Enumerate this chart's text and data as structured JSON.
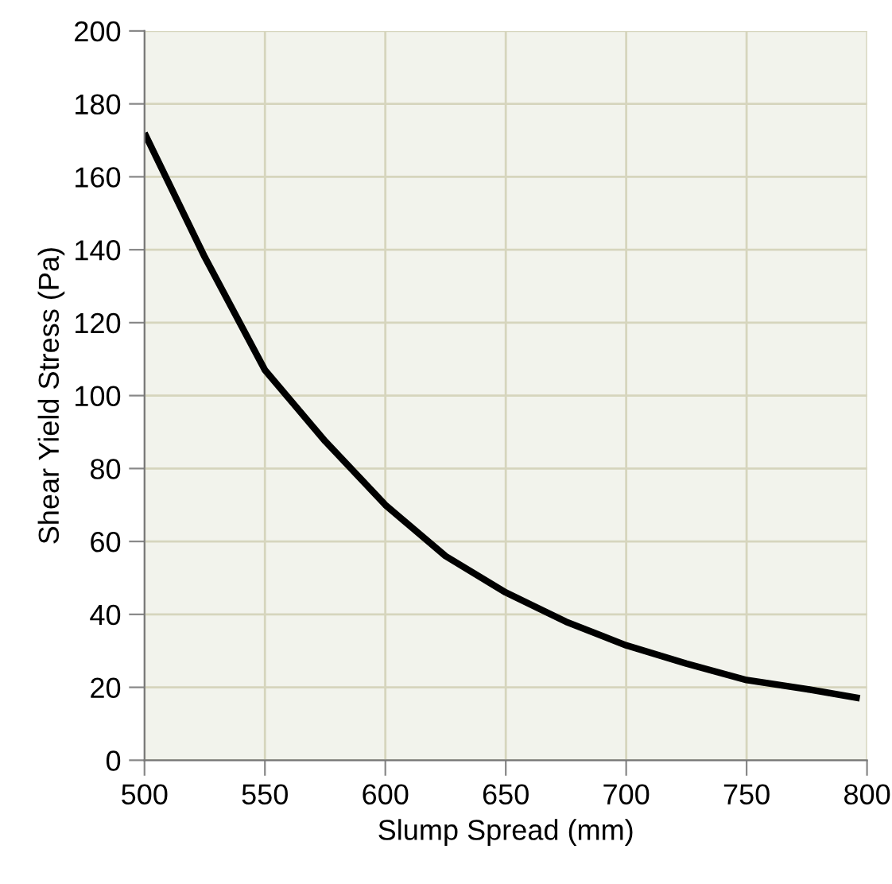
{
  "chart_data": {
    "type": "line",
    "xlabel": "Slump Spread (mm)",
    "ylabel": "Shear Yield Stress (Pa)",
    "x": [
      500,
      525,
      550,
      575,
      600,
      625,
      650,
      675,
      700,
      725,
      750,
      775,
      797
    ],
    "series": [
      {
        "color": "#000000",
        "values": [
          172,
          138,
          107,
          87.5,
          70,
          56,
          46,
          38,
          31.5,
          26.5,
          22,
          19.5,
          17
        ]
      }
    ],
    "xlim": [
      500,
      800
    ],
    "xticks": [
      500,
      550,
      600,
      650,
      700,
      750,
      800
    ],
    "ylim": [
      0,
      200
    ],
    "yticks": [
      0,
      20,
      40,
      60,
      80,
      100,
      120,
      140,
      160,
      180,
      200
    ],
    "grid": true,
    "marker": "none",
    "line_style": "solid"
  }
}
